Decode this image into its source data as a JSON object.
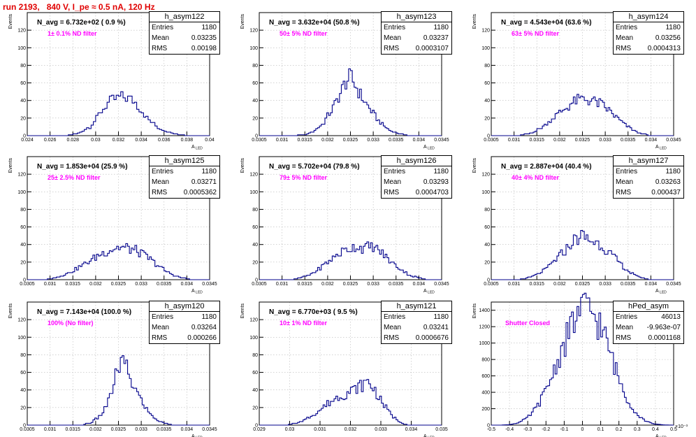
{
  "title": "run 2193,   840 V, I_pe ≈ 0.5 nA, 120 Hz",
  "y_axis_label": "Events",
  "x_axis_label": "A",
  "x_axis_sub": "LED",
  "stat_labels": {
    "entries": "Entries",
    "mean": "Mean",
    "rms": "RMS"
  },
  "colors": {
    "title": "#e00000",
    "filter": "#ff00ff",
    "hist": "#00008b"
  },
  "chart_data": [
    {
      "type": "bar",
      "name": "h_asym122",
      "n_avg": "N_avg = 6.732e+02 ( 0.9 %)",
      "note": "1± 0.1% ND filter",
      "stats": {
        "entries": "1180",
        "mean": "0.03235",
        "rms": "0.00198"
      },
      "xlim": [
        0.024,
        0.04
      ],
      "ylim": [
        0,
        140
      ],
      "xticks": [
        0.024,
        0.026,
        0.028,
        0.03,
        0.032,
        0.034,
        0.036,
        0.038,
        0.04
      ],
      "xtick_labels": [
        "0.024",
        "0.026",
        "0.028",
        "0.03",
        "0.032",
        "0.034",
        "0.036",
        "0.038",
        "0.04"
      ],
      "yticks": [
        0,
        20,
        40,
        60,
        80,
        100,
        120
      ],
      "bin_width": 0.0002,
      "series_peaks": [
        [
          0.0275,
          0
        ],
        [
          0.0285,
          3
        ],
        [
          0.029,
          7
        ],
        [
          0.0295,
          10
        ],
        [
          0.03,
          18
        ],
        [
          0.0305,
          28
        ],
        [
          0.031,
          36
        ],
        [
          0.0315,
          40
        ],
        [
          0.032,
          43
        ],
        [
          0.0325,
          44
        ],
        [
          0.033,
          42
        ],
        [
          0.0335,
          38
        ],
        [
          0.034,
          30
        ],
        [
          0.0345,
          20
        ],
        [
          0.035,
          14
        ],
        [
          0.0355,
          9
        ],
        [
          0.036,
          6
        ],
        [
          0.0365,
          4
        ],
        [
          0.037,
          2
        ],
        [
          0.0375,
          1
        ],
        [
          0.038,
          0
        ]
      ]
    },
    {
      "type": "bar",
      "name": "h_asym123",
      "n_avg": "N_avg = 3.632e+04 (50.8 %)",
      "note": "50± 5% ND filter",
      "stats": {
        "entries": "1180",
        "mean": "0.03237",
        "rms": "0.0003107"
      },
      "xlim": [
        0.0305,
        0.0345
      ],
      "ylim": [
        0,
        140
      ],
      "xticks": [
        0.0305,
        0.031,
        0.0315,
        0.032,
        0.0325,
        0.033,
        0.0335,
        0.034,
        0.0345
      ],
      "xtick_labels": [
        "0.0305",
        "0.031",
        "0.0315",
        "0.032",
        "0.0325",
        "0.033",
        "0.0335",
        "0.034",
        "0.0345"
      ],
      "yticks": [
        0,
        20,
        40,
        60,
        80,
        100,
        120
      ],
      "bin_width": 4e-05,
      "series_peaks": [
        [
          0.0312,
          0
        ],
        [
          0.0315,
          1
        ],
        [
          0.0317,
          5
        ],
        [
          0.0319,
          14
        ],
        [
          0.0321,
          30
        ],
        [
          0.0323,
          50
        ],
        [
          0.0324,
          62
        ],
        [
          0.0325,
          66
        ],
        [
          0.0326,
          58
        ],
        [
          0.0327,
          48
        ],
        [
          0.0329,
          32
        ],
        [
          0.0331,
          18
        ],
        [
          0.0333,
          8
        ],
        [
          0.0335,
          3
        ],
        [
          0.0337,
          1
        ],
        [
          0.0338,
          0
        ]
      ]
    },
    {
      "type": "bar",
      "name": "h_asym124",
      "n_avg": "N_avg = 4.543e+04 (63.6 %)",
      "note": "63± 5% ND filter",
      "stats": {
        "entries": "1180",
        "mean": "0.03256",
        "rms": "0.0004313"
      },
      "xlim": [
        0.0305,
        0.0345
      ],
      "ylim": [
        0,
        140
      ],
      "xticks": [
        0.0305,
        0.031,
        0.0315,
        0.032,
        0.0325,
        0.033,
        0.0335,
        0.034,
        0.0345
      ],
      "xtick_labels": [
        "0.0305",
        "0.031",
        "0.0315",
        "0.032",
        "0.0325",
        "0.033",
        "0.0335",
        "0.034",
        "0.0345"
      ],
      "yticks": [
        0,
        20,
        40,
        60,
        80,
        100,
        120
      ],
      "bin_width": 4e-05,
      "series_peaks": [
        [
          0.0311,
          0
        ],
        [
          0.0313,
          2
        ],
        [
          0.0315,
          6
        ],
        [
          0.0317,
          13
        ],
        [
          0.0319,
          22
        ],
        [
          0.0321,
          30
        ],
        [
          0.0323,
          38
        ],
        [
          0.0325,
          42
        ],
        [
          0.0327,
          40
        ],
        [
          0.0329,
          36
        ],
        [
          0.0331,
          28
        ],
        [
          0.0333,
          18
        ],
        [
          0.0335,
          10
        ],
        [
          0.0337,
          4
        ],
        [
          0.0339,
          1
        ],
        [
          0.034,
          0
        ]
      ]
    },
    {
      "type": "bar",
      "name": "h_asym125",
      "n_avg": "N_avg = 1.853e+04 (25.9 %)",
      "note": "25± 2.5% ND filter",
      "stats": {
        "entries": "1180",
        "mean": "0.03271",
        "rms": "0.0005362"
      },
      "xlim": [
        0.0305,
        0.0345
      ],
      "ylim": [
        0,
        140
      ],
      "xticks": [
        0.0305,
        0.031,
        0.0315,
        0.032,
        0.0325,
        0.033,
        0.0335,
        0.034,
        0.0345
      ],
      "xtick_labels": [
        "0.0305",
        "0.031",
        "0.0315",
        "0.032",
        "0.0325",
        "0.033",
        "0.0335",
        "0.034",
        "0.0345"
      ],
      "yticks": [
        0,
        20,
        40,
        60,
        80,
        100,
        120
      ],
      "bin_width": 4e-05,
      "series_peaks": [
        [
          0.0309,
          0
        ],
        [
          0.0311,
          2
        ],
        [
          0.0313,
          5
        ],
        [
          0.0315,
          10
        ],
        [
          0.0317,
          16
        ],
        [
          0.0319,
          22
        ],
        [
          0.0321,
          29
        ],
        [
          0.0323,
          34
        ],
        [
          0.0325,
          37
        ],
        [
          0.0327,
          36
        ],
        [
          0.0329,
          33
        ],
        [
          0.0331,
          27
        ],
        [
          0.0333,
          19
        ],
        [
          0.0335,
          11
        ],
        [
          0.0337,
          5
        ],
        [
          0.0339,
          2
        ],
        [
          0.0341,
          0
        ]
      ]
    },
    {
      "type": "bar",
      "name": "h_asym126",
      "n_avg": "N_avg = 5.702e+04 (79.8 %)",
      "note": "79± 5% ND filter",
      "stats": {
        "entries": "1180",
        "mean": "0.03293",
        "rms": "0.0004703"
      },
      "xlim": [
        0.0305,
        0.0345
      ],
      "ylim": [
        0,
        140
      ],
      "xticks": [
        0.0305,
        0.031,
        0.0315,
        0.032,
        0.0325,
        0.033,
        0.0335,
        0.034,
        0.0345
      ],
      "xtick_labels": [
        "0.0305",
        "0.031",
        "0.0315",
        "0.032",
        "0.0325",
        "0.033",
        "0.0335",
        "0.034",
        "0.0345"
      ],
      "yticks": [
        0,
        20,
        40,
        60,
        80,
        100,
        120
      ],
      "bin_width": 4e-05,
      "series_peaks": [
        [
          0.0312,
          0
        ],
        [
          0.0314,
          2
        ],
        [
          0.0316,
          5
        ],
        [
          0.0318,
          12
        ],
        [
          0.032,
          20
        ],
        [
          0.0322,
          28
        ],
        [
          0.0324,
          34
        ],
        [
          0.0326,
          38
        ],
        [
          0.0328,
          36
        ],
        [
          0.033,
          38
        ],
        [
          0.0332,
          30
        ],
        [
          0.0334,
          20
        ],
        [
          0.0336,
          12
        ],
        [
          0.0338,
          5
        ],
        [
          0.034,
          2
        ],
        [
          0.0342,
          0
        ]
      ]
    },
    {
      "type": "bar",
      "name": "h_asym127",
      "n_avg": "N_avg = 2.887e+04 (40.4 %)",
      "note": "40± 4% ND filter",
      "stats": {
        "entries": "1180",
        "mean": "0.03263",
        "rms": "0.000437"
      },
      "xlim": [
        0.0305,
        0.0345
      ],
      "ylim": [
        0,
        140
      ],
      "xticks": [
        0.0305,
        0.031,
        0.0315,
        0.032,
        0.0325,
        0.033,
        0.0335,
        0.034,
        0.0345
      ],
      "xtick_labels": [
        "0.0305",
        "0.031",
        "0.0315",
        "0.032",
        "0.0325",
        "0.033",
        "0.0335",
        "0.034",
        "0.0345"
      ],
      "yticks": [
        0,
        20,
        40,
        60,
        80,
        100,
        120
      ],
      "bin_width": 4e-05,
      "series_peaks": [
        [
          0.0311,
          0
        ],
        [
          0.0313,
          2
        ],
        [
          0.0315,
          6
        ],
        [
          0.0317,
          12
        ],
        [
          0.0319,
          22
        ],
        [
          0.0321,
          32
        ],
        [
          0.0323,
          44
        ],
        [
          0.0325,
          50
        ],
        [
          0.0327,
          44
        ],
        [
          0.0329,
          40
        ],
        [
          0.0331,
          30
        ],
        [
          0.0333,
          20
        ],
        [
          0.0335,
          10
        ],
        [
          0.0337,
          4
        ],
        [
          0.0339,
          1
        ],
        [
          0.034,
          0
        ]
      ]
    },
    {
      "type": "bar",
      "name": "h_asym120",
      "n_avg": "N_avg = 7.143e+04 (100.0 %)",
      "note": "100% (No filter)",
      "stats": {
        "entries": "1180",
        "mean": "0.03264",
        "rms": "0.000266"
      },
      "xlim": [
        0.0305,
        0.0345
      ],
      "ylim": [
        0,
        140
      ],
      "xticks": [
        0.0305,
        0.031,
        0.0315,
        0.032,
        0.0325,
        0.033,
        0.0335,
        0.034,
        0.0345
      ],
      "xtick_labels": [
        "0.0305",
        "0.031",
        "0.0315",
        "0.032",
        "0.0325",
        "0.033",
        "0.0335",
        "0.034",
        "0.0345"
      ],
      "yticks": [
        0,
        20,
        40,
        60,
        80,
        100,
        120
      ],
      "bin_width": 4e-05,
      "series_peaks": [
        [
          0.0317,
          0
        ],
        [
          0.0319,
          3
        ],
        [
          0.0321,
          10
        ],
        [
          0.0323,
          28
        ],
        [
          0.0324,
          48
        ],
        [
          0.0325,
          66
        ],
        [
          0.0326,
          72
        ],
        [
          0.0327,
          62
        ],
        [
          0.0328,
          48
        ],
        [
          0.033,
          28
        ],
        [
          0.0332,
          12
        ],
        [
          0.0334,
          4
        ],
        [
          0.0336,
          1
        ],
        [
          0.0337,
          0
        ]
      ]
    },
    {
      "type": "bar",
      "name": "h_asym121",
      "n_avg": "N_avg = 6.770e+03 ( 9.5 %)",
      "note": "10± 1% ND filter",
      "stats": {
        "entries": "1180",
        "mean": "0.03241",
        "rms": "0.0006676"
      },
      "xlim": [
        0.029,
        0.035
      ],
      "ylim": [
        0,
        140
      ],
      "xticks": [
        0.029,
        0.03,
        0.031,
        0.032,
        0.033,
        0.034,
        0.035
      ],
      "xtick_labels": [
        "0.029",
        "0.03",
        "0.031",
        "0.032",
        "0.033",
        "0.034",
        "0.035"
      ],
      "yticks": [
        0,
        20,
        40,
        60,
        80,
        100,
        120
      ],
      "bin_width": 6e-05,
      "series_peaks": [
        [
          0.0299,
          0
        ],
        [
          0.0302,
          2
        ],
        [
          0.0305,
          6
        ],
        [
          0.0308,
          12
        ],
        [
          0.0311,
          20
        ],
        [
          0.0314,
          28
        ],
        [
          0.0317,
          34
        ],
        [
          0.032,
          38
        ],
        [
          0.0323,
          44
        ],
        [
          0.0326,
          50
        ],
        [
          0.0328,
          40
        ],
        [
          0.033,
          28
        ],
        [
          0.0332,
          18
        ],
        [
          0.0334,
          10
        ],
        [
          0.0336,
          4
        ],
        [
          0.0338,
          1
        ],
        [
          0.034,
          0
        ]
      ]
    },
    {
      "type": "bar",
      "name": "hPed_asym",
      "n_avg": "",
      "note": "Shutter Closed",
      "stats": {
        "entries": "46013",
        "mean": "-9.963e-07",
        "rms": "0.0001168"
      },
      "xlim": [
        -0.5,
        0.5
      ],
      "ylim": [
        0,
        1500
      ],
      "x_exponent": "×10⁻³",
      "xticks": [
        -0.5,
        -0.4,
        -0.3,
        -0.2,
        -0.1,
        0,
        0.1,
        0.2,
        0.3,
        0.4,
        0.5
      ],
      "xtick_labels": [
        "-0.5",
        "-0.4",
        "-0.3",
        "-0.2",
        "-0.1",
        "0",
        "0.1",
        "0.2",
        "0.3",
        "0.4",
        "0.5"
      ],
      "yticks": [
        0,
        200,
        400,
        600,
        800,
        1000,
        1200,
        1400
      ],
      "bin_width": 0.01,
      "series_peaks": [
        [
          -0.45,
          0
        ],
        [
          -0.4,
          5
        ],
        [
          -0.35,
          30
        ],
        [
          -0.3,
          90
        ],
        [
          -0.25,
          220
        ],
        [
          -0.2,
          420
        ],
        [
          -0.15,
          700
        ],
        [
          -0.1,
          980
        ],
        [
          -0.05,
          1260
        ],
        [
          0,
          1420
        ],
        [
          0.05,
          1390
        ],
        [
          0.1,
          1200
        ],
        [
          0.15,
          900
        ],
        [
          0.2,
          560
        ],
        [
          0.25,
          300
        ],
        [
          0.3,
          130
        ],
        [
          0.35,
          45
        ],
        [
          0.4,
          12
        ],
        [
          0.45,
          2
        ],
        [
          0.5,
          0
        ]
      ]
    }
  ]
}
